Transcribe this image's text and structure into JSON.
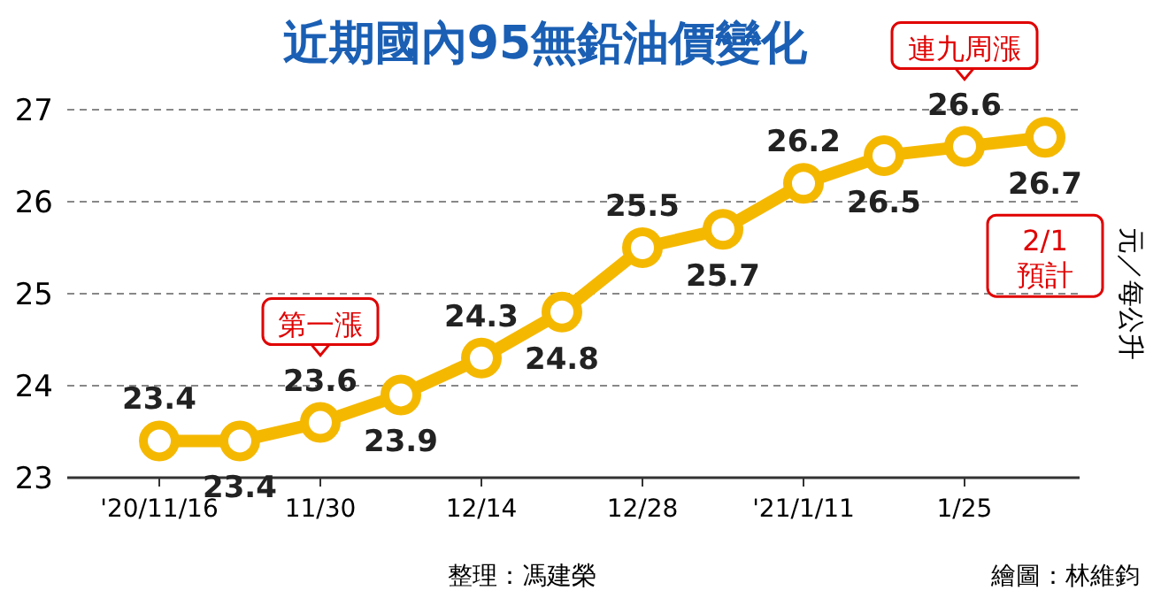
{
  "chart_data": {
    "type": "line",
    "title": "近期國內95無鉛油價變化",
    "ylabel": "元／每公升",
    "x": [
      "2020-11-16",
      "2020-11-23",
      "2020-11-30",
      "2020-12-07",
      "2020-12-14",
      "2020-12-21",
      "2020-12-28",
      "2021-01-04",
      "2021-01-11",
      "2021-01-18",
      "2021-01-25",
      "2021-02-01"
    ],
    "series": [
      {
        "color": "#f5b800",
        "values": [
          23.4,
          23.4,
          23.6,
          23.9,
          24.3,
          24.8,
          25.5,
          25.7,
          26.2,
          26.5,
          26.6,
          26.7
        ]
      }
    ],
    "xlim": [
      "2020-11-08",
      "2021-02-04"
    ],
    "xticks": [
      {
        "value": "2020-11-16",
        "label": "'20/11/16"
      },
      {
        "value": "2020-11-30",
        "label": "11/30"
      },
      {
        "value": "2020-12-14",
        "label": "12/14"
      },
      {
        "value": "2020-12-28",
        "label": "12/28"
      },
      {
        "value": "2021-01-11",
        "label": "'21/1/11"
      },
      {
        "value": "2021-01-25",
        "label": "1/25"
      }
    ],
    "ylim": [
      23,
      27
    ],
    "yticks": [
      23,
      24,
      25,
      26,
      27
    ],
    "grid": "y",
    "data_labels": true,
    "marker": "circle",
    "line_style": "solid",
    "annotations": [
      {
        "text": "第一漲",
        "x": "2020-11-30",
        "y": 23.6
      },
      {
        "text": "連九周漲",
        "x": "2021-01-25",
        "y": 26.6
      },
      "2/1\n預計",
      "整理：馮建榮",
      "繪圖：林維鈞"
    ]
  }
}
